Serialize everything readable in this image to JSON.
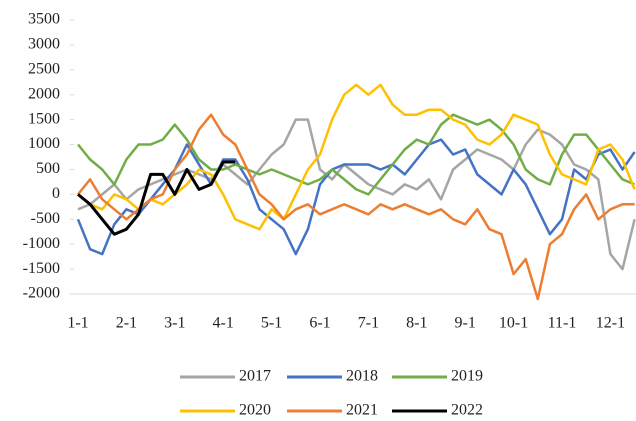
{
  "chart_data": {
    "type": "line",
    "categories": [
      "1-1",
      null,
      null,
      null,
      "2-1",
      null,
      null,
      null,
      "3-1",
      null,
      null,
      null,
      "4-1",
      null,
      null,
      null,
      "5-1",
      null,
      null,
      null,
      "6-1",
      null,
      null,
      null,
      "7-1",
      null,
      null,
      null,
      "8-1",
      null,
      null,
      null,
      "9-1",
      null,
      null,
      null,
      "10-1",
      null,
      null,
      null,
      "11-1",
      null,
      null,
      null,
      "12-1",
      null,
      null
    ],
    "ylim": [
      -2000,
      3500
    ],
    "yticks": [
      -2000,
      -1500,
      -1000,
      -500,
      0,
      500,
      1000,
      1500,
      2000,
      2500,
      3000,
      3500
    ],
    "series": [
      {
        "name": "2017",
        "color": "#a5a5a5",
        "values": [
          -300,
          -200,
          0,
          200,
          -100,
          100,
          200,
          300,
          400,
          500,
          400,
          300,
          600,
          400,
          200,
          500,
          800,
          1000,
          1500,
          1500,
          500,
          300,
          600,
          400,
          200,
          100,
          0,
          200,
          100,
          300,
          -100,
          500,
          700,
          900,
          800,
          700,
          500,
          1000,
          1300,
          1200,
          1000,
          600,
          500,
          300,
          -1200,
          -1500,
          -500
        ]
      },
      {
        "name": "2018",
        "color": "#4472c4",
        "values": [
          -500,
          -1100,
          -1200,
          -600,
          -300,
          -400,
          -100,
          200,
          500,
          1000,
          600,
          200,
          700,
          700,
          300,
          -300,
          -500,
          -700,
          -1200,
          -700,
          200,
          500,
          600,
          600,
          600,
          500,
          600,
          400,
          700,
          1000,
          1100,
          800,
          900,
          400,
          200,
          0,
          500,
          200,
          -300,
          -800,
          -500,
          500,
          300,
          800,
          900,
          500,
          850
        ]
      },
      {
        "name": "2019",
        "color": "#70ad47",
        "values": [
          1000,
          700,
          500,
          200,
          700,
          1000,
          1000,
          1100,
          1400,
          1100,
          700,
          500,
          500,
          600,
          500,
          400,
          500,
          400,
          300,
          200,
          300,
          500,
          300,
          100,
          0,
          300,
          600,
          900,
          1100,
          1000,
          1400,
          1600,
          1500,
          1400,
          1500,
          1300,
          1000,
          500,
          300,
          200,
          800,
          1200,
          1200,
          900,
          600,
          300,
          200
        ]
      },
      {
        "name": "2020",
        "color": "#ffc000",
        "values": [
          0,
          -200,
          -300,
          0,
          -100,
          -300,
          -100,
          -200,
          0,
          200,
          500,
          400,
          0,
          -500,
          -600,
          -700,
          -300,
          -500,
          0,
          500,
          800,
          1500,
          2000,
          2200,
          2000,
          2200,
          1800,
          1600,
          1600,
          1700,
          1700,
          1500,
          1400,
          1100,
          1000,
          1200,
          1600,
          1500,
          1400,
          800,
          400,
          300,
          200,
          900,
          1000,
          700,
          100
        ]
      },
      {
        "name": "2021",
        "color": "#ed7d31",
        "values": [
          0,
          300,
          -100,
          -300,
          -500,
          -300,
          -100,
          0,
          500,
          800,
          1300,
          1600,
          1200,
          1000,
          500,
          0,
          -200,
          -500,
          -300,
          -200,
          -400,
          -300,
          -200,
          -300,
          -400,
          -200,
          -300,
          -200,
          -300,
          -400,
          -300,
          -500,
          -600,
          -300,
          -700,
          -800,
          -1600,
          -1300,
          -2100,
          -1000,
          -800,
          -300,
          0,
          -500,
          -300,
          -200,
          -200
        ]
      },
      {
        "name": "2022",
        "color": "#000000",
        "values": [
          0,
          -200,
          -500,
          -800,
          -700,
          -400,
          400,
          400,
          0,
          500,
          100,
          200,
          650,
          650,
          null,
          null,
          null,
          null,
          null,
          null,
          null,
          null,
          null,
          null,
          null,
          null,
          null,
          null,
          null,
          null,
          null,
          null,
          null,
          null,
          null,
          null,
          null,
          null,
          null,
          null,
          null,
          null,
          null,
          null,
          null,
          null,
          null
        ]
      }
    ]
  }
}
